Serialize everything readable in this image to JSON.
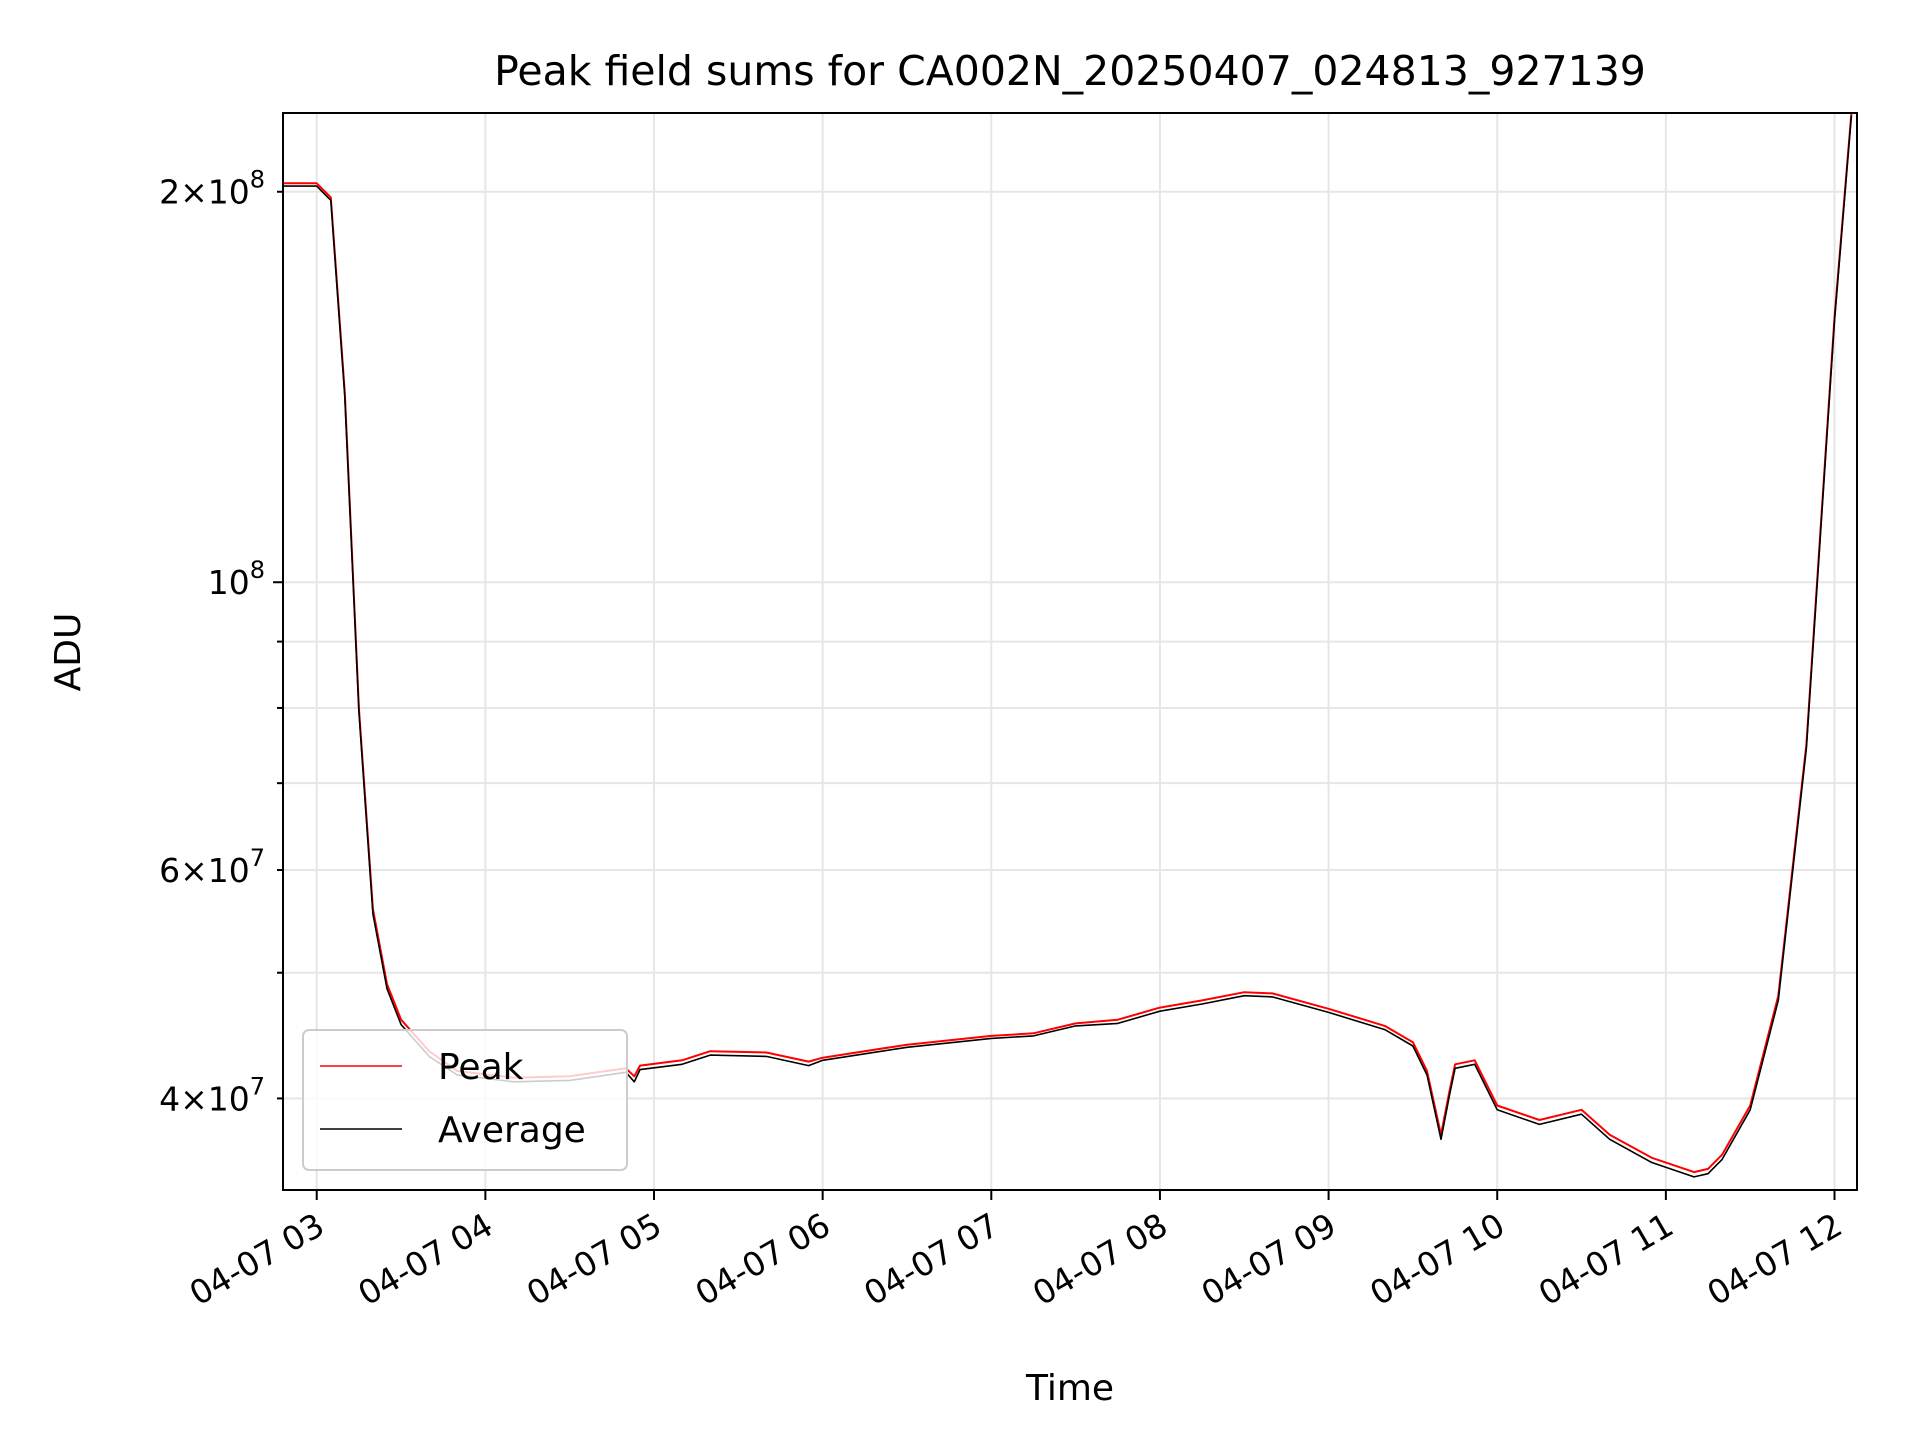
{
  "chart_data": {
    "type": "line",
    "title": "Peak field sums for CA002N_20250407_024813_927139",
    "xlabel": "Time",
    "ylabel": "ADU",
    "yscale": "log",
    "grid": true,
    "legend_position": "lower-left",
    "x_range": [
      "2025-04-07 02:48",
      "2025-04-07 12:08"
    ],
    "y_range": [
      34000000,
      230000000
    ],
    "x_ticks": [
      {
        "value": "2025-04-07 03:00",
        "label": "04-07 03"
      },
      {
        "value": "2025-04-07 04:00",
        "label": "04-07 04"
      },
      {
        "value": "2025-04-07 05:00",
        "label": "04-07 05"
      },
      {
        "value": "2025-04-07 06:00",
        "label": "04-07 06"
      },
      {
        "value": "2025-04-07 07:00",
        "label": "04-07 07"
      },
      {
        "value": "2025-04-07 08:00",
        "label": "04-07 08"
      },
      {
        "value": "2025-04-07 09:00",
        "label": "04-07 09"
      },
      {
        "value": "2025-04-07 10:00",
        "label": "04-07 10"
      },
      {
        "value": "2025-04-07 11:00",
        "label": "04-07 11"
      },
      {
        "value": "2025-04-07 12:00",
        "label": "04-07 12"
      }
    ],
    "y_major_ticks": [
      {
        "value": 100000000,
        "base": "10",
        "exp": "8"
      }
    ],
    "y_minor_ticks": [
      {
        "value": 40000000,
        "coef": "4",
        "exp": "7"
      },
      {
        "value": 50000000
      },
      {
        "value": 60000000,
        "coef": "6",
        "exp": "7"
      },
      {
        "value": 70000000
      },
      {
        "value": 80000000
      },
      {
        "value": 90000000
      },
      {
        "value": 200000000,
        "coef": "2",
        "exp": "8"
      }
    ],
    "series": [
      {
        "name": "Peak",
        "color": "#ff0000",
        "points": [
          [
            "2025-04-07 02:48",
            203000000
          ],
          [
            "2025-04-07 03:00",
            203000000
          ],
          [
            "2025-04-07 03:05",
            198000000
          ],
          [
            "2025-04-07 03:10",
            140000000
          ],
          [
            "2025-04-07 03:15",
            80000000
          ],
          [
            "2025-04-07 03:20",
            56000000
          ],
          [
            "2025-04-07 03:25",
            49000000
          ],
          [
            "2025-04-07 03:30",
            46000000
          ],
          [
            "2025-04-07 03:40",
            43500000
          ],
          [
            "2025-04-07 03:50",
            42000000
          ],
          [
            "2025-04-07 04:10",
            41500000
          ],
          [
            "2025-04-07 04:30",
            41600000
          ],
          [
            "2025-04-07 04:50",
            42200000
          ],
          [
            "2025-04-07 04:53",
            41600000
          ],
          [
            "2025-04-07 04:55",
            42400000
          ],
          [
            "2025-04-07 05:10",
            42800000
          ],
          [
            "2025-04-07 05:20",
            43500000
          ],
          [
            "2025-04-07 05:40",
            43400000
          ],
          [
            "2025-04-07 05:55",
            42700000
          ],
          [
            "2025-04-07 06:00",
            43000000
          ],
          [
            "2025-04-07 06:30",
            44000000
          ],
          [
            "2025-04-07 07:00",
            44700000
          ],
          [
            "2025-04-07 07:15",
            44900000
          ],
          [
            "2025-04-07 07:30",
            45700000
          ],
          [
            "2025-04-07 07:45",
            46000000
          ],
          [
            "2025-04-07 08:00",
            47000000
          ],
          [
            "2025-04-07 08:15",
            47600000
          ],
          [
            "2025-04-07 08:30",
            48300000
          ],
          [
            "2025-04-07 08:40",
            48200000
          ],
          [
            "2025-04-07 09:00",
            46900000
          ],
          [
            "2025-04-07 09:20",
            45500000
          ],
          [
            "2025-04-07 09:30",
            44200000
          ],
          [
            "2025-04-07 09:35",
            42000000
          ],
          [
            "2025-04-07 09:40",
            37500000
          ],
          [
            "2025-04-07 09:43",
            40500000
          ],
          [
            "2025-04-07 09:45",
            42500000
          ],
          [
            "2025-04-07 09:52",
            42800000
          ],
          [
            "2025-04-07 10:00",
            39500000
          ],
          [
            "2025-04-07 10:15",
            38500000
          ],
          [
            "2025-04-07 10:30",
            39200000
          ],
          [
            "2025-04-07 10:40",
            37500000
          ],
          [
            "2025-04-07 10:55",
            36000000
          ],
          [
            "2025-04-07 11:10",
            35100000
          ],
          [
            "2025-04-07 11:15",
            35300000
          ],
          [
            "2025-04-07 11:20",
            36200000
          ],
          [
            "2025-04-07 11:30",
            39500000
          ],
          [
            "2025-04-07 11:40",
            48000000
          ],
          [
            "2025-04-07 11:50",
            75000000
          ],
          [
            "2025-04-07 12:00",
            160000000
          ],
          [
            "2025-04-07 12:06",
            230000000
          ]
        ]
      },
      {
        "name": "Average",
        "color": "#000000",
        "points": [
          [
            "2025-04-07 02:48",
            202000000
          ],
          [
            "2025-04-07 03:00",
            202000000
          ],
          [
            "2025-04-07 03:05",
            197000000
          ],
          [
            "2025-04-07 03:10",
            139000000
          ],
          [
            "2025-04-07 03:15",
            79500000
          ],
          [
            "2025-04-07 03:20",
            55500000
          ],
          [
            "2025-04-07 03:25",
            48600000
          ],
          [
            "2025-04-07 03:30",
            45600000
          ],
          [
            "2025-04-07 03:40",
            43100000
          ],
          [
            "2025-04-07 03:50",
            41700000
          ],
          [
            "2025-04-07 04:10",
            41200000
          ],
          [
            "2025-04-07 04:30",
            41300000
          ],
          [
            "2025-04-07 04:50",
            41900000
          ],
          [
            "2025-04-07 04:53",
            41200000
          ],
          [
            "2025-04-07 04:55",
            42100000
          ],
          [
            "2025-04-07 05:10",
            42500000
          ],
          [
            "2025-04-07 05:20",
            43200000
          ],
          [
            "2025-04-07 05:40",
            43100000
          ],
          [
            "2025-04-07 05:55",
            42400000
          ],
          [
            "2025-04-07 06:00",
            42800000
          ],
          [
            "2025-04-07 06:30",
            43800000
          ],
          [
            "2025-04-07 07:00",
            44500000
          ],
          [
            "2025-04-07 07:15",
            44700000
          ],
          [
            "2025-04-07 07:30",
            45500000
          ],
          [
            "2025-04-07 07:45",
            45700000
          ],
          [
            "2025-04-07 08:00",
            46700000
          ],
          [
            "2025-04-07 08:15",
            47300000
          ],
          [
            "2025-04-07 08:30",
            48000000
          ],
          [
            "2025-04-07 08:40",
            47900000
          ],
          [
            "2025-04-07 09:00",
            46600000
          ],
          [
            "2025-04-07 09:20",
            45200000
          ],
          [
            "2025-04-07 09:30",
            43900000
          ],
          [
            "2025-04-07 09:35",
            41700000
          ],
          [
            "2025-04-07 09:40",
            37200000
          ],
          [
            "2025-04-07 09:43",
            40200000
          ],
          [
            "2025-04-07 09:45",
            42200000
          ],
          [
            "2025-04-07 09:52",
            42500000
          ],
          [
            "2025-04-07 10:00",
            39200000
          ],
          [
            "2025-04-07 10:15",
            38200000
          ],
          [
            "2025-04-07 10:30",
            38900000
          ],
          [
            "2025-04-07 10:40",
            37200000
          ],
          [
            "2025-04-07 10:55",
            35700000
          ],
          [
            "2025-04-07 11:10",
            34800000
          ],
          [
            "2025-04-07 11:15",
            35000000
          ],
          [
            "2025-04-07 11:20",
            35900000
          ],
          [
            "2025-04-07 11:30",
            39200000
          ],
          [
            "2025-04-07 11:40",
            47600000
          ],
          [
            "2025-04-07 11:50",
            74500000
          ],
          [
            "2025-04-07 12:00",
            159000000
          ],
          [
            "2025-04-07 12:06",
            229000000
          ]
        ]
      }
    ]
  }
}
